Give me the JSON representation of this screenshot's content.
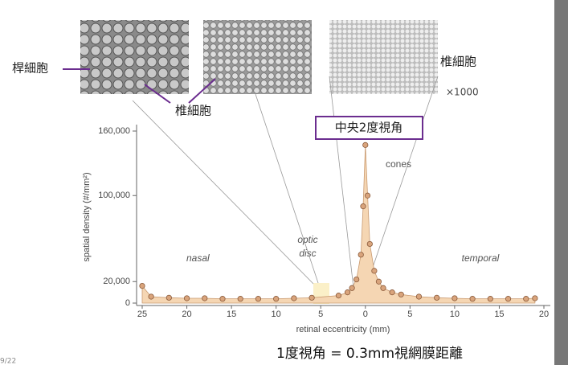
{
  "chart_data": {
    "type": "area",
    "x_label": "retinal eccentricity (mm)",
    "y_label": "spatial density (#/mm²)",
    "xlim": [
      -25,
      20
    ],
    "xticks": [
      {
        "value": -25,
        "label": "25"
      },
      {
        "value": -20,
        "label": "20"
      },
      {
        "value": -15,
        "label": "15"
      },
      {
        "value": -10,
        "label": "10"
      },
      {
        "value": -5,
        "label": "5"
      },
      0,
      5,
      10,
      15,
      20
    ],
    "ylim": [
      0,
      160000
    ],
    "yticks": [
      0,
      {
        "value": 20000,
        "label": "20,000"
      },
      {
        "value": 100000,
        "label": "100,000"
      },
      {
        "value": 160000,
        "label": "160,000"
      }
    ],
    "color": "#f5d6b3",
    "marker_color": "#d9a47c",
    "series": [
      {
        "name": "cones",
        "x": [
          -25,
          -24,
          -22,
          -20,
          -18,
          -16,
          -14,
          -12,
          -10,
          -8,
          -6,
          -3,
          -2,
          -1.5,
          -1,
          -0.5,
          -0.25,
          0,
          0.25,
          0.5,
          1,
          1.5,
          2,
          3,
          4,
          6,
          8,
          10,
          12,
          14,
          16,
          18,
          19
        ],
        "values": [
          16000,
          6000,
          5000,
          4500,
          4500,
          4000,
          4000,
          4000,
          4000,
          4500,
          5000,
          7000,
          10000,
          14000,
          22000,
          45000,
          90000,
          147000,
          100000,
          55000,
          30000,
          20000,
          14000,
          10000,
          8000,
          6000,
          5000,
          4500,
          4000,
          4000,
          4000,
          4000,
          4500
        ]
      }
    ],
    "annotations": [
      "nasal",
      "optic",
      "disc",
      "temporal"
    ]
  },
  "slide": {
    "rod_label": "桿細胞",
    "cone_label_left": "椎細胞",
    "cone_label_right": "椎細胞",
    "magnification": "×1000",
    "fovea_box": "中央2度視角",
    "footnote": "1度視角 = 0.3mm視網膜距離",
    "page": "9/22"
  }
}
